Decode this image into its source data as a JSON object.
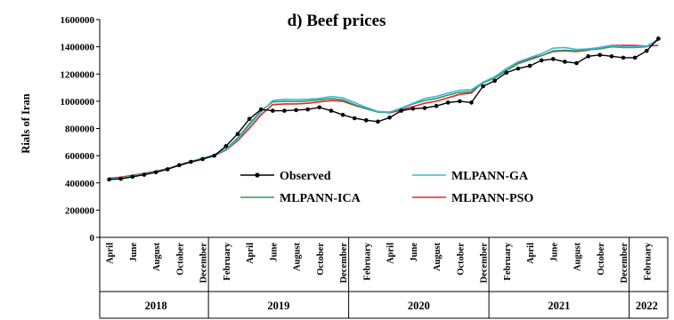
{
  "chart_data": {
    "type": "line",
    "title": "d) Beef prices",
    "ylabel": "Rials of Iran",
    "xlabel": "",
    "ylim": [
      0,
      1600000
    ],
    "yticks": [
      "0",
      "200000",
      "400000",
      "600000",
      "800000",
      "1000000",
      "1200000",
      "1400000",
      "1600000"
    ],
    "month_labels": [
      "April",
      "June",
      "August",
      "October",
      "December",
      "February",
      "April",
      "June",
      "August",
      "October",
      "December",
      "February",
      "April",
      "June",
      "August",
      "October",
      "December",
      "February",
      "April",
      "June",
      "August",
      "October",
      "December",
      "February"
    ],
    "month_label_index": [
      0,
      2,
      4,
      6,
      8,
      10,
      12,
      14,
      16,
      18,
      20,
      22,
      24,
      26,
      28,
      30,
      32,
      34,
      36,
      38,
      40,
      42,
      44,
      46
    ],
    "years": [
      {
        "label": "2018",
        "start": 0,
        "end": 9
      },
      {
        "label": "2019",
        "start": 9,
        "end": 21
      },
      {
        "label": "2020",
        "start": 21,
        "end": 33
      },
      {
        "label": "2021",
        "start": 33,
        "end": 45
      },
      {
        "label": "2022",
        "start": 45,
        "end": 48
      }
    ],
    "x": [
      "2018-04",
      "2018-05",
      "2018-06",
      "2018-07",
      "2018-08",
      "2018-09",
      "2018-10",
      "2018-11",
      "2018-12",
      "2019-01",
      "2019-02",
      "2019-03",
      "2019-04",
      "2019-05",
      "2019-06",
      "2019-07",
      "2019-08",
      "2019-09",
      "2019-10",
      "2019-11",
      "2019-12",
      "2020-01",
      "2020-02",
      "2020-03",
      "2020-04",
      "2020-05",
      "2020-06",
      "2020-07",
      "2020-08",
      "2020-09",
      "2020-10",
      "2020-11",
      "2020-12",
      "2021-01",
      "2021-02",
      "2021-03",
      "2021-04",
      "2021-05",
      "2021-06",
      "2021-07",
      "2021-08",
      "2021-09",
      "2021-10",
      "2021-11",
      "2021-12",
      "2022-01",
      "2022-02",
      "2022-03"
    ],
    "series": [
      {
        "name": "Observed",
        "color": "#000000",
        "marker": "dot",
        "values": [
          425000,
          430000,
          445000,
          460000,
          478000,
          500000,
          530000,
          555000,
          575000,
          600000,
          670000,
          760000,
          870000,
          940000,
          930000,
          930000,
          935000,
          940000,
          955000,
          930000,
          900000,
          875000,
          860000,
          850000,
          880000,
          930000,
          945000,
          950000,
          965000,
          990000,
          1000000,
          990000,
          1110000,
          1150000,
          1210000,
          1240000,
          1260000,
          1300000,
          1310000,
          1290000,
          1280000,
          1330000,
          1340000,
          1330000,
          1320000,
          1320000,
          1370000,
          1460000
        ]
      },
      {
        "name": "MLPANN-GA",
        "color": "#3fb6e0",
        "marker": "none",
        "values": [
          430000,
          435000,
          448000,
          463000,
          480000,
          502000,
          530000,
          556000,
          580000,
          605000,
          645000,
          720000,
          820000,
          920000,
          1005000,
          1015000,
          1012000,
          1015000,
          1020000,
          1035000,
          1025000,
          990000,
          955000,
          925000,
          920000,
          950000,
          985000,
          1020000,
          1035000,
          1060000,
          1080000,
          1085000,
          1140000,
          1180000,
          1240000,
          1290000,
          1320000,
          1350000,
          1390000,
          1395000,
          1380000,
          1385000,
          1395000,
          1410000,
          1400000,
          1400000,
          1405000,
          1455000
        ]
      },
      {
        "name": "MLPANN-ICA",
        "color": "#2e9a52",
        "marker": "none",
        "values": [
          432000,
          438000,
          450000,
          465000,
          482000,
          504000,
          531000,
          558000,
          582000,
          607000,
          650000,
          730000,
          835000,
          930000,
          995000,
          1000000,
          998000,
          1002000,
          1010000,
          1020000,
          1010000,
          975000,
          945000,
          920000,
          918000,
          945000,
          980000,
          1005000,
          1020000,
          1045000,
          1065000,
          1070000,
          1135000,
          1170000,
          1225000,
          1275000,
          1305000,
          1335000,
          1370000,
          1375000,
          1370000,
          1378000,
          1385000,
          1400000,
          1395000,
          1395000,
          1400000,
          1450000
        ]
      },
      {
        "name": "MLPANN-PSO",
        "color": "#e0242c",
        "marker": "none",
        "values": [
          435000,
          442000,
          455000,
          470000,
          485000,
          505000,
          528000,
          552000,
          575000,
          600000,
          640000,
          710000,
          800000,
          900000,
          975000,
          980000,
          980000,
          985000,
          995000,
          1005000,
          1000000,
          970000,
          945000,
          925000,
          915000,
          935000,
          960000,
          985000,
          1000000,
          1025000,
          1050000,
          1060000,
          1140000,
          1175000,
          1240000,
          1285000,
          1315000,
          1335000,
          1365000,
          1370000,
          1365000,
          1375000,
          1395000,
          1410000,
          1410000,
          1410000,
          1405000,
          1410000
        ]
      }
    ],
    "legend": "inside, lower-center",
    "grid": false
  }
}
